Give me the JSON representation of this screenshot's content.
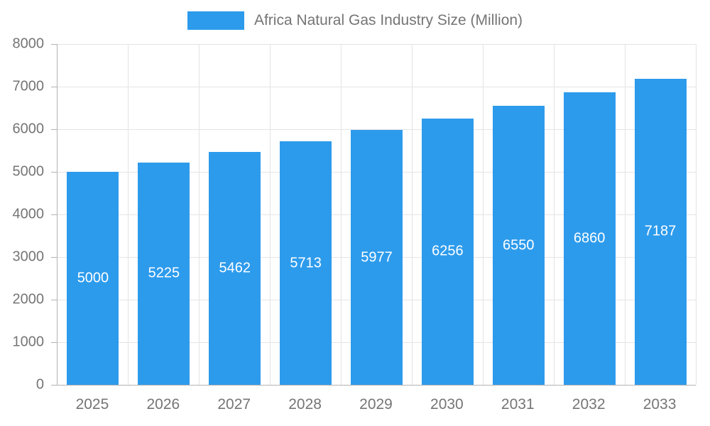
{
  "legend": {
    "label": "Africa Natural Gas Industry Size (Million)",
    "swatch_color": "#2d9bec",
    "position": "top"
  },
  "chart_data": {
    "type": "bar",
    "title": "Africa Natural Gas Industry Size (Million)",
    "categories": [
      "2025",
      "2026",
      "2027",
      "2028",
      "2029",
      "2030",
      "2031",
      "2032",
      "2033"
    ],
    "values": [
      5000,
      5225,
      5462,
      5713,
      5977,
      6256,
      6550,
      6860,
      7187
    ],
    "xlabel": "",
    "ylabel": "",
    "ylim": [
      0,
      8000
    ],
    "yticks": [
      0,
      1000,
      2000,
      3000,
      4000,
      5000,
      6000,
      7000,
      8000
    ],
    "grid": true,
    "legend_position": "top",
    "value_labels_inside_bars": true,
    "bar_color": "#2d9bec",
    "label_color": "#ffffff",
    "axis_text_color": "#757575",
    "gridline_color": "#e4e4e4",
    "axis_line_color": "#b3b3b3"
  }
}
